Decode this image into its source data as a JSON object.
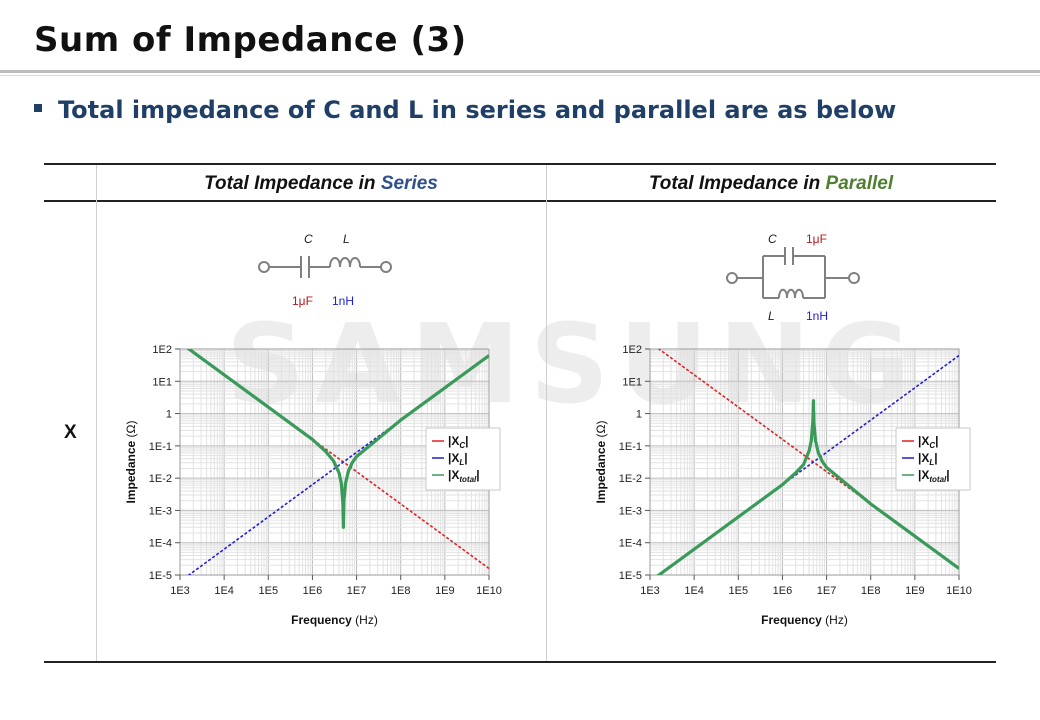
{
  "slide": {
    "title": "Sum of Impedance (3)",
    "bullet": "Total impedance of C and L in series and parallel are as below",
    "watermark": "SAMSUNG"
  },
  "table": {
    "series_head_prefix": "Total Impedance in ",
    "series_head_word": "Series",
    "parallel_head_prefix": "Total Impedance in ",
    "parallel_head_word": "Parallel",
    "row_label": "X"
  },
  "circuits": {
    "series": {
      "c_label": "C",
      "l_label": "L",
      "c_value": "1μF",
      "l_value": "1nH"
    },
    "parallel": {
      "c_label": "C",
      "l_label": "L",
      "c_value": "1μF",
      "l_value": "1nH"
    }
  },
  "colors": {
    "xc": "#e02020",
    "xl": "#1f1fcf",
    "xtotal": "#3a9a5a",
    "heading_blue": "#1f3f66"
  },
  "chart_data": [
    {
      "type": "line",
      "title": "",
      "xlabel": "Frequency",
      "xlabel_unit": "(Hz)",
      "ylabel": "Impedance",
      "ylabel_unit": "(Ω)",
      "x_scale": "log",
      "y_scale": "log",
      "xlim": [
        1000,
        10000000000
      ],
      "ylim": [
        1e-05,
        100
      ],
      "grid": true,
      "legend": "right-middle",
      "x_ticks": [
        "1E3",
        "1E4",
        "1E5",
        "1E6",
        "1E7",
        "1E8",
        "1E9",
        "1E10"
      ],
      "y_ticks": [
        "1E2",
        "1E1",
        "1",
        "1E-1",
        "1E-2",
        "1E-3",
        "1E-4",
        "1E-5"
      ],
      "legend_labels": [
        {
          "base": "|X",
          "sub": "C",
          "end": "|"
        },
        {
          "base": "|X",
          "sub": "L",
          "end": "|"
        },
        {
          "base": "|X",
          "sub": "total",
          "end": "|"
        }
      ],
      "series": [
        {
          "name": "|XC|",
          "color": "#e02020",
          "dash": true,
          "x": [
            1000,
            10000000000
          ],
          "y": [
            159,
            1.59e-05
          ]
        },
        {
          "name": "|XL|",
          "color": "#1f1fcf",
          "dash": true,
          "x": [
            1000,
            10000000000
          ],
          "y": [
            6.28e-06,
            62.8
          ]
        },
        {
          "name": "|Xtotal|",
          "color": "#3a9a5a",
          "dash": false,
          "x": [
            1000,
            1000000,
            2000000,
            3000000,
            4000000,
            4500000,
            4900000,
            5033000,
            5200000,
            5600000,
            6500000,
            8000000,
            10000000,
            100000000,
            1000000000,
            10000000000
          ],
          "y": [
            159,
            0.159,
            0.0669,
            0.0342,
            0.0146,
            0.007,
            0.0016,
            0.0003,
            0.0021,
            0.0068,
            0.0163,
            0.0304,
            0.0469,
            0.628,
            6.28,
            62.8
          ]
        }
      ]
    },
    {
      "type": "line",
      "title": "",
      "xlabel": "Frequency",
      "xlabel_unit": "(Hz)",
      "ylabel": "Impedance",
      "ylabel_unit": "(Ω)",
      "x_scale": "log",
      "y_scale": "log",
      "xlim": [
        1000,
        10000000000
      ],
      "ylim": [
        1e-05,
        100
      ],
      "grid": true,
      "legend": "right-middle",
      "x_ticks": [
        "1E3",
        "1E4",
        "1E5",
        "1E6",
        "1E7",
        "1E8",
        "1E9",
        "1E10"
      ],
      "y_ticks": [
        "1E2",
        "1E1",
        "1",
        "1E-1",
        "1E-2",
        "1E-3",
        "1E-4",
        "1E-5"
      ],
      "legend_labels": [
        {
          "base": "|X",
          "sub": "C",
          "end": "|"
        },
        {
          "base": "|X",
          "sub": "L",
          "end": "|"
        },
        {
          "base": "|X",
          "sub": "total",
          "end": "|"
        }
      ],
      "series": [
        {
          "name": "|XC|",
          "color": "#e02020",
          "dash": true,
          "x": [
            1000,
            10000000000
          ],
          "y": [
            159,
            1.59e-05
          ]
        },
        {
          "name": "|XL|",
          "color": "#1f1fcf",
          "dash": true,
          "x": [
            1000,
            10000000000
          ],
          "y": [
            6.28e-06,
            62.8
          ]
        },
        {
          "name": "|Xtotal|",
          "color": "#3a9a5a",
          "dash": false,
          "x": [
            1000,
            1000000,
            2000000,
            3000000,
            4000000,
            4500000,
            4900000,
            5033000,
            5200000,
            5600000,
            6500000,
            8000000,
            10000000,
            100000000,
            1000000000,
            10000000000
          ],
          "y": [
            6.28e-06,
            0.00628,
            0.0146,
            0.0262,
            0.0682,
            0.143,
            0.616,
            2.5,
            0.48,
            0.147,
            0.0613,
            0.0329,
            0.0213,
            0.00159,
            0.000159,
            1.59e-05
          ]
        }
      ]
    }
  ]
}
